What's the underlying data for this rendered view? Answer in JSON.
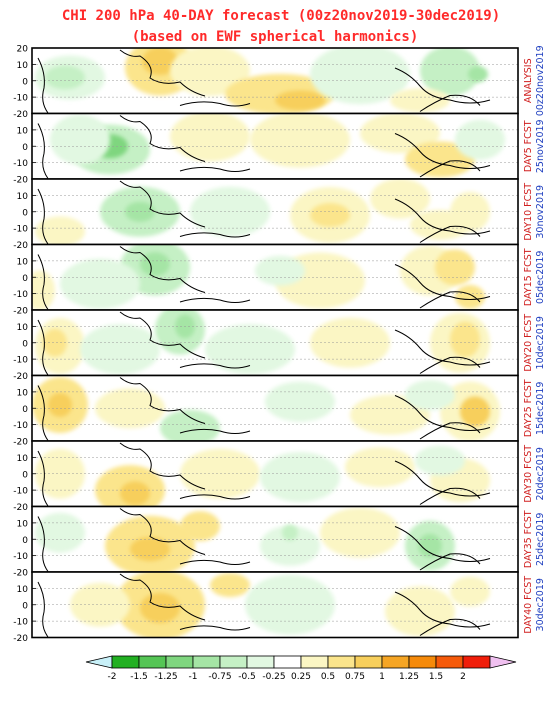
{
  "title": {
    "line1": "CHI 200 hPa 40-DAY forecast (00z20nov2019-30dec2019)",
    "line2": "(based on EWF spherical harmonics)"
  },
  "y_ticks": [
    "20",
    "10",
    "0",
    "-10",
    "-20"
  ],
  "panels": [
    {
      "label": "ANALYSIS",
      "date": "00z20nov2019",
      "label_color": "#d02020",
      "date_color": "#2040c0"
    },
    {
      "label": "DAY5 FCST",
      "date": "25nov2019",
      "label_color": "#d02020",
      "date_color": "#2040c0"
    },
    {
      "label": "DAY10 FCST",
      "date": "30nov2019",
      "label_color": "#d02020",
      "date_color": "#2040c0"
    },
    {
      "label": "DAY15 FCST",
      "date": "05dec2019",
      "label_color": "#d02020",
      "date_color": "#2040c0"
    },
    {
      "label": "DAY20 FCST",
      "date": "10dec2019",
      "label_color": "#d02020",
      "date_color": "#2040c0"
    },
    {
      "label": "DAY25 FCST",
      "date": "15dec2019",
      "label_color": "#d02020",
      "date_color": "#2040c0"
    },
    {
      "label": "DAY30 FCST",
      "date": "20dec2019",
      "label_color": "#d02020",
      "date_color": "#2040c0"
    },
    {
      "label": "DAY35 FCST",
      "date": "25dec2019",
      "label_color": "#d02020",
      "date_color": "#2040c0"
    },
    {
      "label": "DAY40 FCST",
      "date": "30dec2019",
      "label_color": "#d02020",
      "date_color": "#2040c0"
    }
  ],
  "colorbar": {
    "labels": [
      "-2",
      "-1.5",
      "-1.25",
      "-1",
      "-0.75",
      "-0.5",
      "-0.25",
      "0.25",
      "0.5",
      "0.75",
      "1",
      "1.25",
      "1.5",
      "2"
    ],
    "colors": [
      "#c8f0f8",
      "#22b022",
      "#55c555",
      "#7fd67f",
      "#a5e5a5",
      "#c5f0c5",
      "#e2f8e2",
      "#ffffff",
      "#fbf6c4",
      "#fbe58c",
      "#f7cf5c",
      "#f5a524",
      "#f58a0a",
      "#f55a0a",
      "#f01e0a",
      "#f0c0f0"
    ]
  },
  "chart_data": {
    "type": "heatmap",
    "variable": "CHI 200 hPa",
    "y_ticks": [
      20,
      10,
      0,
      -10,
      -20
    ],
    "levels": [
      -2,
      -1.5,
      -1.25,
      -1,
      -0.75,
      -0.5,
      -0.25,
      0.25,
      0.5,
      0.75,
      1,
      1.25,
      1.5,
      2
    ],
    "panels": [
      "ANALYSIS 00z20nov2019",
      "DAY5 FCST 25nov2019",
      "DAY10 FCST 30nov2019",
      "DAY15 FCST 05dec2019",
      "DAY20 FCST 10dec2019",
      "DAY25 FCST 15dec2019",
      "DAY30 FCST 20dec2019",
      "DAY35 FCST 25dec2019",
      "DAY40 FCST 30dec2019"
    ]
  }
}
